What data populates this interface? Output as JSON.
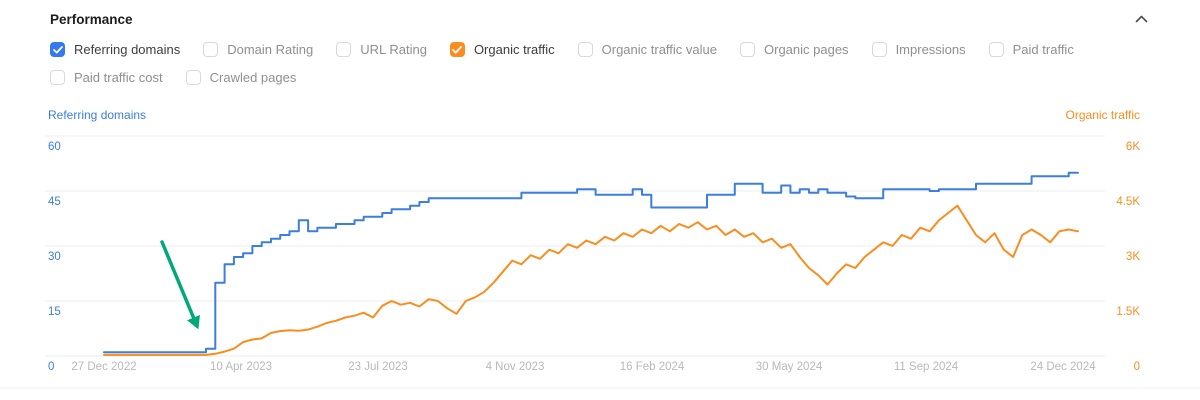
{
  "header": {
    "title": "Performance",
    "collapse_icon": "chevron-up"
  },
  "metrics_toggles": {
    "row1": [
      {
        "label": "Referring domains",
        "checked": true,
        "check_color": "#3379ef"
      },
      {
        "label": "Domain Rating",
        "checked": false,
        "check_color": null
      },
      {
        "label": "URL Rating",
        "checked": false,
        "check_color": null
      },
      {
        "label": "Organic traffic",
        "checked": true,
        "check_color": "#fa8d1f"
      },
      {
        "label": "Organic traffic value",
        "checked": false,
        "check_color": null
      },
      {
        "label": "Organic pages",
        "checked": false,
        "check_color": null
      },
      {
        "label": "Impressions",
        "checked": false,
        "check_color": null
      },
      {
        "label": "Paid traffic",
        "checked": false,
        "check_color": null
      }
    ],
    "row2": [
      {
        "label": "Paid traffic cost",
        "checked": false,
        "check_color": null
      },
      {
        "label": "Crawled pages",
        "checked": false,
        "check_color": null
      }
    ]
  },
  "chart_data": {
    "type": "line",
    "grid": true,
    "left_axis": {
      "label": "Referring domains",
      "color": "#3b7edd",
      "ticks": [
        "0",
        "15",
        "30",
        "45",
        "60"
      ],
      "range": [
        0,
        60
      ]
    },
    "right_axis": {
      "label": "Organic traffic",
      "color": "#fa8d1f",
      "ticks": [
        "0",
        "1.5K",
        "3K",
        "4.5K",
        "6K"
      ],
      "range": [
        0,
        6000
      ]
    },
    "x_axis": {
      "tick_labels": [
        "27 Dec 2022",
        "10 Apr 2023",
        "23 Jul 2023",
        "4 Nov 2023",
        "16 Feb 2024",
        "30 May 2024",
        "11 Sep 2024",
        "24 Dec 2024"
      ]
    },
    "series": [
      {
        "name": "Referring domains",
        "axis": "left",
        "color": "#3b7edd",
        "style": "step",
        "values": [
          1,
          1,
          1,
          1,
          1,
          1,
          1,
          1,
          1,
          1,
          1,
          2,
          20,
          25,
          27,
          28,
          30,
          31,
          32,
          33,
          34,
          37,
          34,
          35,
          35,
          36,
          36,
          37,
          38,
          38,
          39,
          40,
          40,
          41,
          42,
          43,
          43,
          43,
          43,
          43,
          43,
          43,
          43,
          43,
          43,
          44.5,
          44.5,
          44.5,
          44.5,
          44.5,
          44.5,
          45.5,
          45.5,
          44,
          44,
          44,
          44,
          45.5,
          44,
          40.5,
          40.5,
          40.5,
          40.5,
          40.5,
          40.5,
          44,
          44,
          44,
          47,
          47,
          47,
          44.5,
          44.5,
          46.5,
          44.5,
          45.5,
          44.5,
          45.5,
          44.5,
          44.5,
          43.5,
          43,
          43,
          43,
          45.5,
          45.5,
          45.5,
          45.5,
          45.5,
          45,
          45.5,
          45.5,
          45.5,
          45.5,
          47,
          47,
          47,
          47,
          47,
          47,
          49,
          49,
          49,
          49,
          50,
          50
        ]
      },
      {
        "name": "Organic traffic",
        "axis": "right",
        "color": "#fa8d1f",
        "style": "line",
        "values": [
          30,
          30,
          30,
          30,
          30,
          30,
          30,
          30,
          30,
          30,
          30,
          30,
          60,
          120,
          200,
          380,
          450,
          480,
          630,
          680,
          700,
          690,
          720,
          800,
          900,
          960,
          1050,
          1100,
          1180,
          1050,
          1370,
          1500,
          1400,
          1450,
          1350,
          1550,
          1500,
          1300,
          1150,
          1500,
          1600,
          1750,
          2000,
          2300,
          2600,
          2500,
          2750,
          2650,
          2900,
          2800,
          3050,
          2950,
          3150,
          3050,
          3250,
          3150,
          3350,
          3250,
          3450,
          3350,
          3550,
          3400,
          3600,
          3500,
          3650,
          3450,
          3550,
          3300,
          3450,
          3250,
          3350,
          3100,
          3200,
          2950,
          3050,
          2700,
          2400,
          2200,
          1950,
          2250,
          2500,
          2400,
          2700,
          2900,
          3100,
          3000,
          3300,
          3200,
          3500,
          3400,
          3700,
          3900,
          4100,
          3700,
          3300,
          3100,
          3350,
          2900,
          2700,
          3300,
          3450,
          3300,
          3100,
          3400,
          3450,
          3400
        ]
      }
    ],
    "annotation": {
      "type": "arrow",
      "color": "#00a87a",
      "points_at": "start of growth near 10 Apr 2023"
    }
  }
}
